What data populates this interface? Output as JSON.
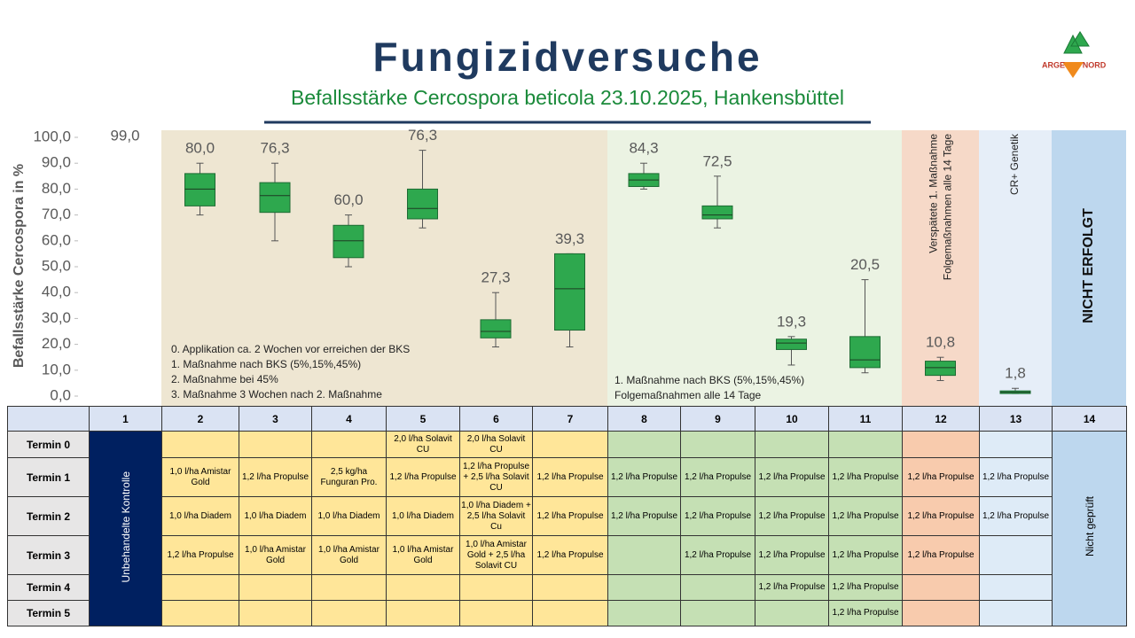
{
  "chart_data": {
    "type": "box",
    "title": "Fungizidversuche",
    "subtitle": "Befallsstärke Cercospora beticola 23.10.2025, Hankensbüttel",
    "y_label": "Befallsstärke Cercospora in %",
    "categories": [
      "1",
      "2",
      "3",
      "4",
      "5",
      "6",
      "7",
      "8",
      "9",
      "10",
      "11",
      "12",
      "13",
      "14"
    ],
    "ylim": [
      0,
      100
    ],
    "yticks": [
      {
        "value": 0,
        "label": "0,0"
      },
      {
        "value": 10,
        "label": "10,0"
      },
      {
        "value": 20,
        "label": "20,0"
      },
      {
        "value": 30,
        "label": "30,0"
      },
      {
        "value": 40,
        "label": "40,0"
      },
      {
        "value": 50,
        "label": "50,0"
      },
      {
        "value": 60,
        "label": "60,0"
      },
      {
        "value": 70,
        "label": "70,0"
      },
      {
        "value": 80,
        "label": "80,0"
      },
      {
        "value": 90,
        "label": "90,0"
      },
      {
        "value": 100,
        "label": "100,0"
      }
    ],
    "color": "#2ea84e",
    "boxes": [
      null,
      {
        "whislo": 70,
        "q1": 73.5,
        "med": 80,
        "q3": 86,
        "whishi": 90
      },
      {
        "whislo": 60,
        "q1": 71,
        "med": 77.5,
        "q3": 82.5,
        "whishi": 90
      },
      {
        "whislo": 50,
        "q1": 53.5,
        "med": 60,
        "q3": 66,
        "whishi": 70
      },
      {
        "whislo": 65,
        "q1": 68.5,
        "med": 72.5,
        "q3": 80,
        "whishi": 95
      },
      {
        "whislo": 19,
        "q1": 22.5,
        "med": 25,
        "q3": 29.5,
        "whishi": 40
      },
      {
        "whislo": 19,
        "q1": 25.5,
        "med": 41.5,
        "q3": 55,
        "whishi": 55
      },
      {
        "whislo": 80,
        "q1": 81,
        "med": 83.5,
        "q3": 86,
        "whishi": 90
      },
      {
        "whislo": 65,
        "q1": 68.5,
        "med": 70,
        "q3": 73.5,
        "whishi": 85
      },
      {
        "whislo": 12,
        "q1": 18,
        "med": 20.5,
        "q3": 22,
        "whishi": 23
      },
      {
        "whislo": 9,
        "q1": 11,
        "med": 14,
        "q3": 23,
        "whishi": 45
      },
      {
        "whislo": 6,
        "q1": 8,
        "med": 11,
        "q3": 13.5,
        "whishi": 15
      },
      {
        "whislo": 1,
        "q1": 1,
        "med": 1.5,
        "q3": 2,
        "whishi": 3
      },
      null
    ],
    "values": [
      99,
      80,
      76.3,
      60,
      76.3,
      27.3,
      39.3,
      84.3,
      72.5,
      19.3,
      20.5,
      10.8,
      1.8,
      null
    ],
    "value_labels": [
      "99,0",
      "80,0",
      "76,3",
      "60,0",
      "76,3",
      "27,3",
      "39,3",
      "84,3",
      "72,5",
      "19,3",
      "20,5",
      "10,8",
      "1,8",
      null
    ],
    "annotations": {
      "left": [
        "0. Applikation ca. 2 Wochen vor erreichen der BKS",
        "1. Maßnahme nach BKS (5%,15%,45%)",
        "2. Maßnahme bei 45%",
        "3. Maßnahme 3 Wochen nach 2. Maßnahme"
      ],
      "right": [
        "1. Maßnahme nach BKS (5%,15%,45%)",
        "Folgemaßnahmen alle 14 Tage"
      ],
      "col12": [
        "Verspätete 1. Maßnahme",
        "Folgemaßnahmen alle 14 Tage"
      ],
      "col13": "CR+ Genetik",
      "col14": "NICHT ERFOLGT"
    }
  },
  "logo": {
    "left": "ARGE",
    "right": "NORD"
  },
  "table": {
    "control_label": "Unbehandelte Kontrolle",
    "col14_label": "Nicht geprüft",
    "rows": [
      {
        "label": "Termin 0",
        "cells": [
          null,
          null,
          null,
          "2,0 l/ha Solavit CU",
          "2,0 l/ha Solavit CU",
          null,
          null,
          null,
          null,
          null,
          null,
          null
        ]
      },
      {
        "label": "Termin 1",
        "cells": [
          "1,0 l/ha Amistar Gold",
          "1,2 l/ha Propulse",
          "2,5 kg/ha Funguran Pro.",
          "1,2 l/ha Propulse",
          "1,2 l/ha Propulse + 2,5 l/ha Solavit CU",
          "1,2 l/ha Propulse",
          "1,2 l/ha Propulse",
          "1,2 l/ha Propulse",
          "1,2 l/ha Propulse",
          "1,2 l/ha Propulse",
          "1,2 l/ha Propulse",
          "1,2 l/ha Propulse"
        ]
      },
      {
        "label": "Termin 2",
        "cells": [
          "1,0 l/ha Diadem",
          "1,0 l/ha Diadem",
          "1,0 l/ha Diadem",
          "1,0 l/ha Diadem",
          "1,0 l/ha Diadem + 2,5 l/ha Solavit Cu",
          "1,2 l/ha Propulse",
          "1,2 l/ha Propulse",
          "1,2 l/ha Propulse",
          "1,2 l/ha Propulse",
          "1,2 l/ha Propulse",
          "1,2 l/ha Propulse",
          "1,2 l/ha Propulse"
        ]
      },
      {
        "label": "Termin 3",
        "cells": [
          "1,2 l/ha Propulse",
          "1,0 l/ha Amistar Gold",
          "1,0 l/ha Amistar Gold",
          "1,0 l/ha Amistar Gold",
          "1,0 l/ha Amistar Gold + 2,5 l/ha Solavit CU",
          "1,2 l/ha Propulse",
          null,
          "1,2 l/ha Propulse",
          "1,2 l/ha Propulse",
          "1,2 l/ha Propulse",
          "1,2 l/ha Propulse",
          null
        ]
      },
      {
        "label": "Termin 4",
        "cells": [
          null,
          null,
          null,
          null,
          null,
          null,
          null,
          null,
          "1,2 l/ha Propulse",
          "1,2 l/ha Propulse",
          null,
          null
        ]
      },
      {
        "label": "Termin 5",
        "cells": [
          null,
          null,
          null,
          null,
          null,
          null,
          null,
          null,
          null,
          "1,2 l/ha Propulse",
          null,
          null
        ]
      }
    ]
  }
}
